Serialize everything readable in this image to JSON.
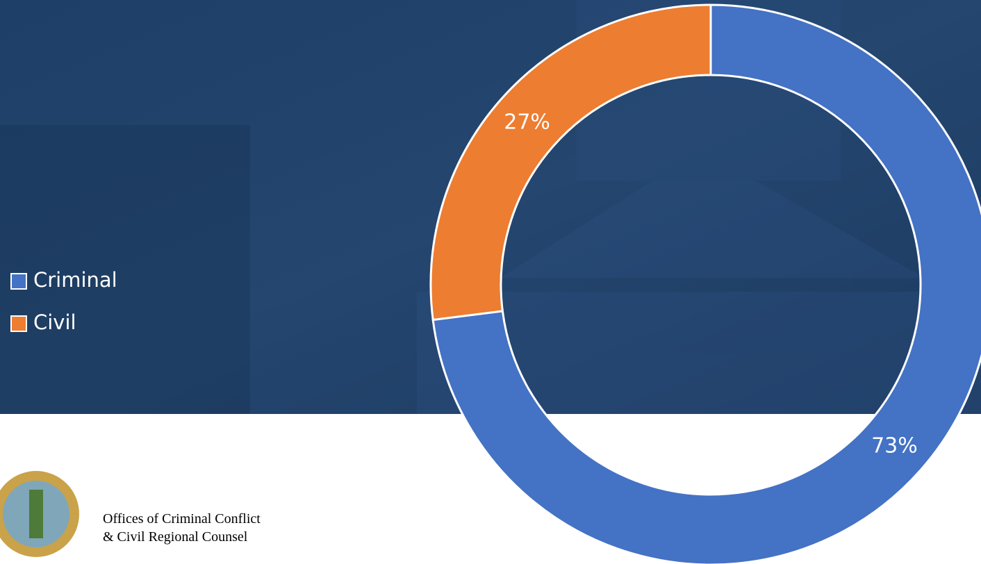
{
  "chart_data": {
    "type": "donut",
    "categories": [
      "Criminal",
      "Civil"
    ],
    "values": [
      73,
      27
    ],
    "value_labels": [
      "73%",
      "27%"
    ],
    "colors": [
      "#4472c4",
      "#ed7d31"
    ],
    "legend": "left"
  },
  "footer": {
    "lines": [
      "Offices of Criminal Conflict",
      "& Civil Regional Counsel"
    ]
  }
}
